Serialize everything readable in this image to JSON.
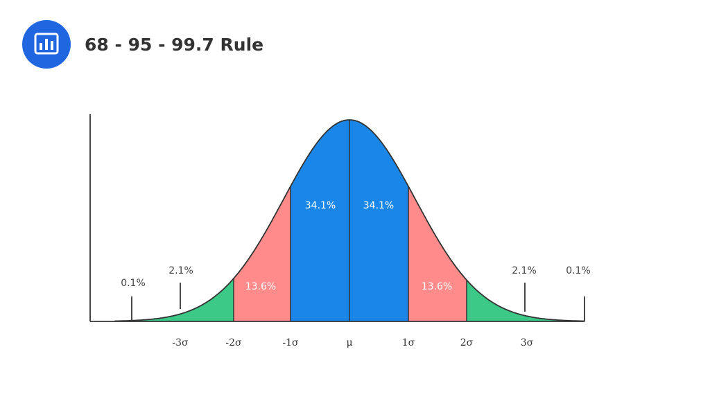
{
  "header": {
    "title": "68 - 95 - 99.7 Rule"
  },
  "x_labels": [
    "-3σ",
    "-2σ",
    "-1σ",
    "μ",
    "1σ",
    "2σ",
    "3σ"
  ],
  "region_labels": [
    "0.1%",
    "2.1%",
    "13.6%",
    "34.1%",
    "34.1%",
    "13.6%",
    "2.1%",
    "0.1%"
  ]
}
